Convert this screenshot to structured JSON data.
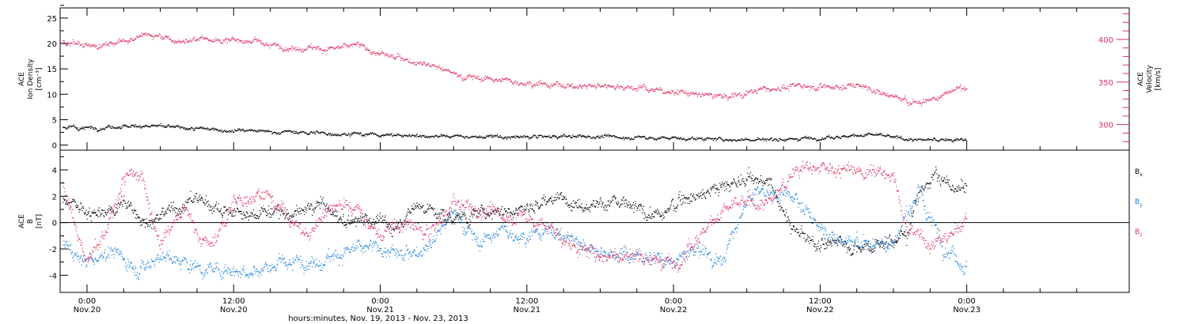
{
  "chart_data": [
    {
      "type": "scatter",
      "ylabel_lines": [
        "ACE",
        "Ion Density",
        "[cm⁻³]"
      ],
      "y2label_lines": [
        "ACE",
        "Velocity",
        "[km/s]"
      ],
      "x_range_hours": [
        -2.2,
        85.3
      ],
      "y_range": [
        -1,
        27
      ],
      "y2_range": [
        270,
        437
      ],
      "y_ticks": [
        0,
        5,
        10,
        15,
        20,
        25
      ],
      "y2_ticks": [
        300,
        350,
        400
      ],
      "colors": {
        "velocity": "#e0305e",
        "density": "#000000"
      },
      "series": [
        {
          "axis": "right",
          "trend": [
            [
              -2.0,
              397
            ],
            [
              0.0,
              394
            ],
            [
              1.5,
              394
            ],
            [
              3.0,
              400
            ],
            [
              4.5,
              405
            ],
            [
              6.0,
              403
            ],
            [
              7.5,
              398
            ],
            [
              9.0,
              402
            ],
            [
              10.5,
              400
            ],
            [
              12.0,
              400
            ],
            [
              13.5,
              398
            ],
            [
              15.0,
              393
            ],
            [
              16.5,
              390
            ],
            [
              18.0,
              392
            ],
            [
              19.5,
              389
            ],
            [
              21.0,
              391
            ],
            [
              22.0,
              394
            ],
            [
              23.5,
              385
            ],
            [
              25.0,
              380
            ],
            [
              26.5,
              376
            ],
            [
              28.0,
              372
            ],
            [
              29.5,
              364
            ],
            [
              30.5,
              358
            ],
            [
              31.5,
              356
            ],
            [
              33.0,
              354
            ],
            [
              34.5,
              352
            ],
            [
              36.0,
              350
            ],
            [
              37.5,
              347
            ],
            [
              39.0,
              347
            ],
            [
              40.5,
              344
            ],
            [
              42.0,
              347
            ],
            [
              43.5,
              346
            ],
            [
              45.0,
              344
            ],
            [
              46.5,
              341
            ],
            [
              48.0,
              339
            ],
            [
              49.5,
              337
            ],
            [
              51.0,
              334
            ],
            [
              52.5,
              333
            ],
            [
              54.0,
              338
            ],
            [
              55.5,
              342
            ],
            [
              57.0,
              344
            ],
            [
              58.5,
              347
            ],
            [
              60.0,
              345
            ],
            [
              61.5,
              345
            ],
            [
              63.0,
              347
            ],
            [
              64.5,
              340
            ],
            [
              66.0,
              333
            ],
            [
              67.5,
              326
            ],
            [
              69.0,
              330
            ],
            [
              70.0,
              336
            ],
            [
              71.0,
              342
            ],
            [
              72.0,
              344
            ]
          ]
        },
        {
          "axis": "left",
          "trend": [
            [
              -2.0,
              3.6
            ],
            [
              1.0,
              3.5
            ],
            [
              3.0,
              3.8
            ],
            [
              5.0,
              3.9
            ],
            [
              8.0,
              3.4
            ],
            [
              11.0,
              3.1
            ],
            [
              14.0,
              2.8
            ],
            [
              17.0,
              2.6
            ],
            [
              20.0,
              2.4
            ],
            [
              23.0,
              2.2
            ],
            [
              26.0,
              2.0
            ],
            [
              29.0,
              1.8
            ],
            [
              32.0,
              1.7
            ],
            [
              35.0,
              1.6
            ],
            [
              38.0,
              1.7
            ],
            [
              41.0,
              1.8
            ],
            [
              44.0,
              1.6
            ],
            [
              47.0,
              1.5
            ],
            [
              50.0,
              1.3
            ],
            [
              53.0,
              1.1
            ],
            [
              56.0,
              1.2
            ],
            [
              59.0,
              1.5
            ],
            [
              62.0,
              1.8
            ],
            [
              64.0,
              2.2
            ],
            [
              66.0,
              1.6
            ],
            [
              68.0,
              1.0
            ],
            [
              70.0,
              1.2
            ],
            [
              72.0,
              1.0
            ]
          ]
        }
      ]
    },
    {
      "type": "scatter",
      "ylabel_lines": [
        "ACE",
        "B",
        "[nT]"
      ],
      "x_range_hours": [
        -2.2,
        85.3
      ],
      "y_range": [
        -5.3,
        5.5
      ],
      "y_ticks": [
        -4,
        -2,
        0,
        2,
        4
      ],
      "zero_line": true,
      "legend_position": "right",
      "colors": {
        "Bx": "#000000",
        "By": "#1a7fe0",
        "Bz": "#e0305e"
      },
      "series": [
        {
          "name": "Bx",
          "name_main": "B",
          "name_sub": "x",
          "trend": [
            [
              -2.0,
              1.5
            ],
            [
              1.0,
              0.5
            ],
            [
              3.0,
              1.5
            ],
            [
              5.0,
              0.0
            ],
            [
              7.0,
              1.0
            ],
            [
              9.0,
              2.0
            ],
            [
              11.0,
              1.0
            ],
            [
              13.0,
              0.5
            ],
            [
              15.0,
              1.0
            ],
            [
              17.0,
              0.5
            ],
            [
              19.0,
              1.5
            ],
            [
              21.0,
              0.0
            ],
            [
              23.0,
              0.5
            ],
            [
              25.0,
              -0.5
            ],
            [
              27.0,
              1.5
            ],
            [
              29.0,
              0.5
            ],
            [
              31.0,
              0.5
            ],
            [
              33.0,
              1.0
            ],
            [
              35.0,
              1.0
            ],
            [
              37.0,
              1.5
            ],
            [
              39.0,
              1.8
            ],
            [
              41.0,
              1.5
            ],
            [
              43.0,
              1.5
            ],
            [
              45.0,
              1.0
            ],
            [
              47.0,
              0.5
            ],
            [
              49.0,
              2.0
            ],
            [
              51.0,
              2.5
            ],
            [
              53.0,
              3.0
            ],
            [
              54.5,
              3.5
            ],
            [
              56.0,
              2.8
            ],
            [
              57.5,
              0.0
            ],
            [
              59.0,
              -1.5
            ],
            [
              61.0,
              -1.5
            ],
            [
              63.0,
              -1.8
            ],
            [
              65.0,
              -1.5
            ],
            [
              67.0,
              -1.0
            ],
            [
              68.0,
              2.5
            ],
            [
              69.5,
              3.5
            ],
            [
              71.0,
              2.5
            ],
            [
              72.0,
              3.0
            ]
          ]
        },
        {
          "name": "By",
          "name_main": "B",
          "name_sub": "y",
          "trend": [
            [
              -2.0,
              -1.5
            ],
            [
              0.0,
              -3.0
            ],
            [
              2.0,
              -2.0
            ],
            [
              4.0,
              -3.5
            ],
            [
              6.0,
              -2.5
            ],
            [
              8.0,
              -3.0
            ],
            [
              10.0,
              -3.5
            ],
            [
              12.0,
              -3.5
            ],
            [
              14.0,
              -3.5
            ],
            [
              16.0,
              -3.2
            ],
            [
              18.0,
              -3.0
            ],
            [
              20.0,
              -2.5
            ],
            [
              22.0,
              -2.0
            ],
            [
              24.0,
              -2.0
            ],
            [
              26.0,
              -2.5
            ],
            [
              28.0,
              -1.5
            ],
            [
              30.0,
              1.0
            ],
            [
              32.0,
              -1.5
            ],
            [
              34.0,
              -0.5
            ],
            [
              36.0,
              -1.0
            ],
            [
              38.0,
              -0.5
            ],
            [
              40.0,
              -1.5
            ],
            [
              42.0,
              -2.0
            ],
            [
              44.0,
              -2.5
            ],
            [
              46.0,
              -2.5
            ],
            [
              48.0,
              -3.0
            ],
            [
              50.0,
              -2.0
            ],
            [
              52.0,
              -3.0
            ],
            [
              54.0,
              2.0
            ],
            [
              56.0,
              2.5
            ],
            [
              58.0,
              2.0
            ],
            [
              60.0,
              -0.5
            ],
            [
              62.0,
              -1.5
            ],
            [
              64.0,
              -1.5
            ],
            [
              66.0,
              -1.5
            ],
            [
              68.0,
              2.5
            ],
            [
              70.0,
              -1.5
            ],
            [
              72.0,
              -3.5
            ]
          ]
        },
        {
          "name": "Bz",
          "name_main": "B",
          "name_sub": "z",
          "trend": [
            [
              -2.0,
              3.0
            ],
            [
              0.0,
              -3.0
            ],
            [
              1.5,
              -1.0
            ],
            [
              3.0,
              3.5
            ],
            [
              4.5,
              3.5
            ],
            [
              6.0,
              -1.5
            ],
            [
              8.0,
              1.0
            ],
            [
              10.0,
              -2.0
            ],
            [
              12.0,
              1.5
            ],
            [
              14.0,
              2.5
            ],
            [
              16.0,
              1.0
            ],
            [
              18.0,
              -1.0
            ],
            [
              20.0,
              1.5
            ],
            [
              22.0,
              1.0
            ],
            [
              24.0,
              -1.0
            ],
            [
              26.0,
              0.0
            ],
            [
              28.0,
              -1.0
            ],
            [
              30.0,
              1.5
            ],
            [
              32.0,
              1.0
            ],
            [
              34.0,
              0.5
            ],
            [
              36.0,
              0.5
            ],
            [
              38.0,
              -0.5
            ],
            [
              40.0,
              -2.0
            ],
            [
              42.0,
              -2.5
            ],
            [
              44.0,
              -2.5
            ],
            [
              46.0,
              -2.5
            ],
            [
              48.0,
              -3.0
            ],
            [
              50.0,
              -1.0
            ],
            [
              52.0,
              1.0
            ],
            [
              54.0,
              1.5
            ],
            [
              56.0,
              1.5
            ],
            [
              58.0,
              4.2
            ],
            [
              60.0,
              4.0
            ],
            [
              62.0,
              4.0
            ],
            [
              64.0,
              3.8
            ],
            [
              66.0,
              3.8
            ],
            [
              67.0,
              -0.5
            ],
            [
              69.0,
              -1.5
            ],
            [
              70.5,
              -1.0
            ],
            [
              72.0,
              0.5
            ]
          ]
        }
      ]
    }
  ],
  "x_axis": {
    "ticks": [
      {
        "hours": 0,
        "time": "0:00",
        "date": "Nov.20"
      },
      {
        "hours": 12,
        "time": "12:00",
        "date": "Nov.20"
      },
      {
        "hours": 24,
        "time": "0:00",
        "date": "Nov.21"
      },
      {
        "hours": 36,
        "time": "12:00",
        "date": "Nov.21"
      },
      {
        "hours": 48,
        "time": "0:00",
        "date": "Nov.22"
      },
      {
        "hours": 60,
        "time": "12:00",
        "date": "Nov.22"
      },
      {
        "hours": 72,
        "time": "0:00",
        "date": "Nov.23"
      }
    ],
    "label": "hours:minutes, Nov. 19, 2013 - Nov. 23, 2013"
  }
}
